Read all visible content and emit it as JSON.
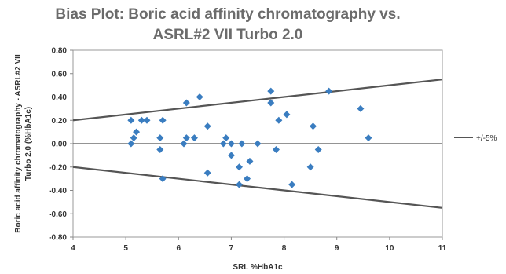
{
  "chart_data": {
    "type": "scatter",
    "title_lines": [
      "Bias Plot: Boric acid affinity chromatography vs.",
      "ASRL#2 VII Turbo 2.0"
    ],
    "xlabel": "SRL %HbA1c",
    "ylabel_lines": [
      "Boric acid affinity chromatography - ASRL#2 VII",
      "Turbo 2.0 (%HbA1c)"
    ],
    "xlim": [
      4,
      11
    ],
    "ylim": [
      -0.8,
      0.8
    ],
    "x_ticks": [
      4,
      5,
      6,
      7,
      8,
      9,
      10,
      11
    ],
    "y_ticks": [
      0.8,
      0.6,
      0.4,
      0.2,
      0.0,
      -0.2,
      -0.4,
      -0.6,
      -0.8
    ],
    "y_tick_labels": [
      "0.80",
      "0.60",
      "0.40",
      "0.20",
      "0.00",
      "-0.20",
      "-0.40",
      "-0.60",
      "-0.80"
    ],
    "grid": false,
    "legend": {
      "position": "right",
      "entry": "+/-5%"
    },
    "marker_color": "#3a7dc0",
    "line_color": "#555555",
    "reference_lines": [
      {
        "name": "+5%",
        "points": [
          [
            4,
            0.2
          ],
          [
            11,
            0.55
          ]
        ]
      },
      {
        "name": "-5%",
        "points": [
          [
            4,
            -0.2
          ],
          [
            11,
            -0.55
          ]
        ]
      }
    ],
    "zero_line": 0,
    "points": [
      [
        5.1,
        0.2
      ],
      [
        5.1,
        0.0
      ],
      [
        5.15,
        0.05
      ],
      [
        5.2,
        0.1
      ],
      [
        5.3,
        0.2
      ],
      [
        5.4,
        0.2
      ],
      [
        5.65,
        -0.05
      ],
      [
        5.65,
        0.05
      ],
      [
        5.7,
        0.2
      ],
      [
        5.7,
        -0.3
      ],
      [
        6.1,
        0.0
      ],
      [
        6.15,
        0.05
      ],
      [
        6.15,
        0.35
      ],
      [
        6.3,
        0.05
      ],
      [
        6.4,
        0.4
      ],
      [
        6.55,
        0.15
      ],
      [
        6.55,
        -0.25
      ],
      [
        6.85,
        0.0
      ],
      [
        6.9,
        0.05
      ],
      [
        7.0,
        -0.1
      ],
      [
        7.0,
        0.0
      ],
      [
        7.15,
        -0.2
      ],
      [
        7.15,
        -0.35
      ],
      [
        7.2,
        0.0
      ],
      [
        7.3,
        -0.3
      ],
      [
        7.35,
        -0.15
      ],
      [
        7.5,
        0.0
      ],
      [
        7.75,
        0.45
      ],
      [
        7.75,
        0.35
      ],
      [
        7.85,
        -0.05
      ],
      [
        7.9,
        0.2
      ],
      [
        8.05,
        0.25
      ],
      [
        8.15,
        -0.35
      ],
      [
        8.5,
        -0.2
      ],
      [
        8.55,
        0.15
      ],
      [
        8.65,
        -0.05
      ],
      [
        8.85,
        0.45
      ],
      [
        9.45,
        0.3
      ],
      [
        9.6,
        0.05
      ]
    ]
  }
}
